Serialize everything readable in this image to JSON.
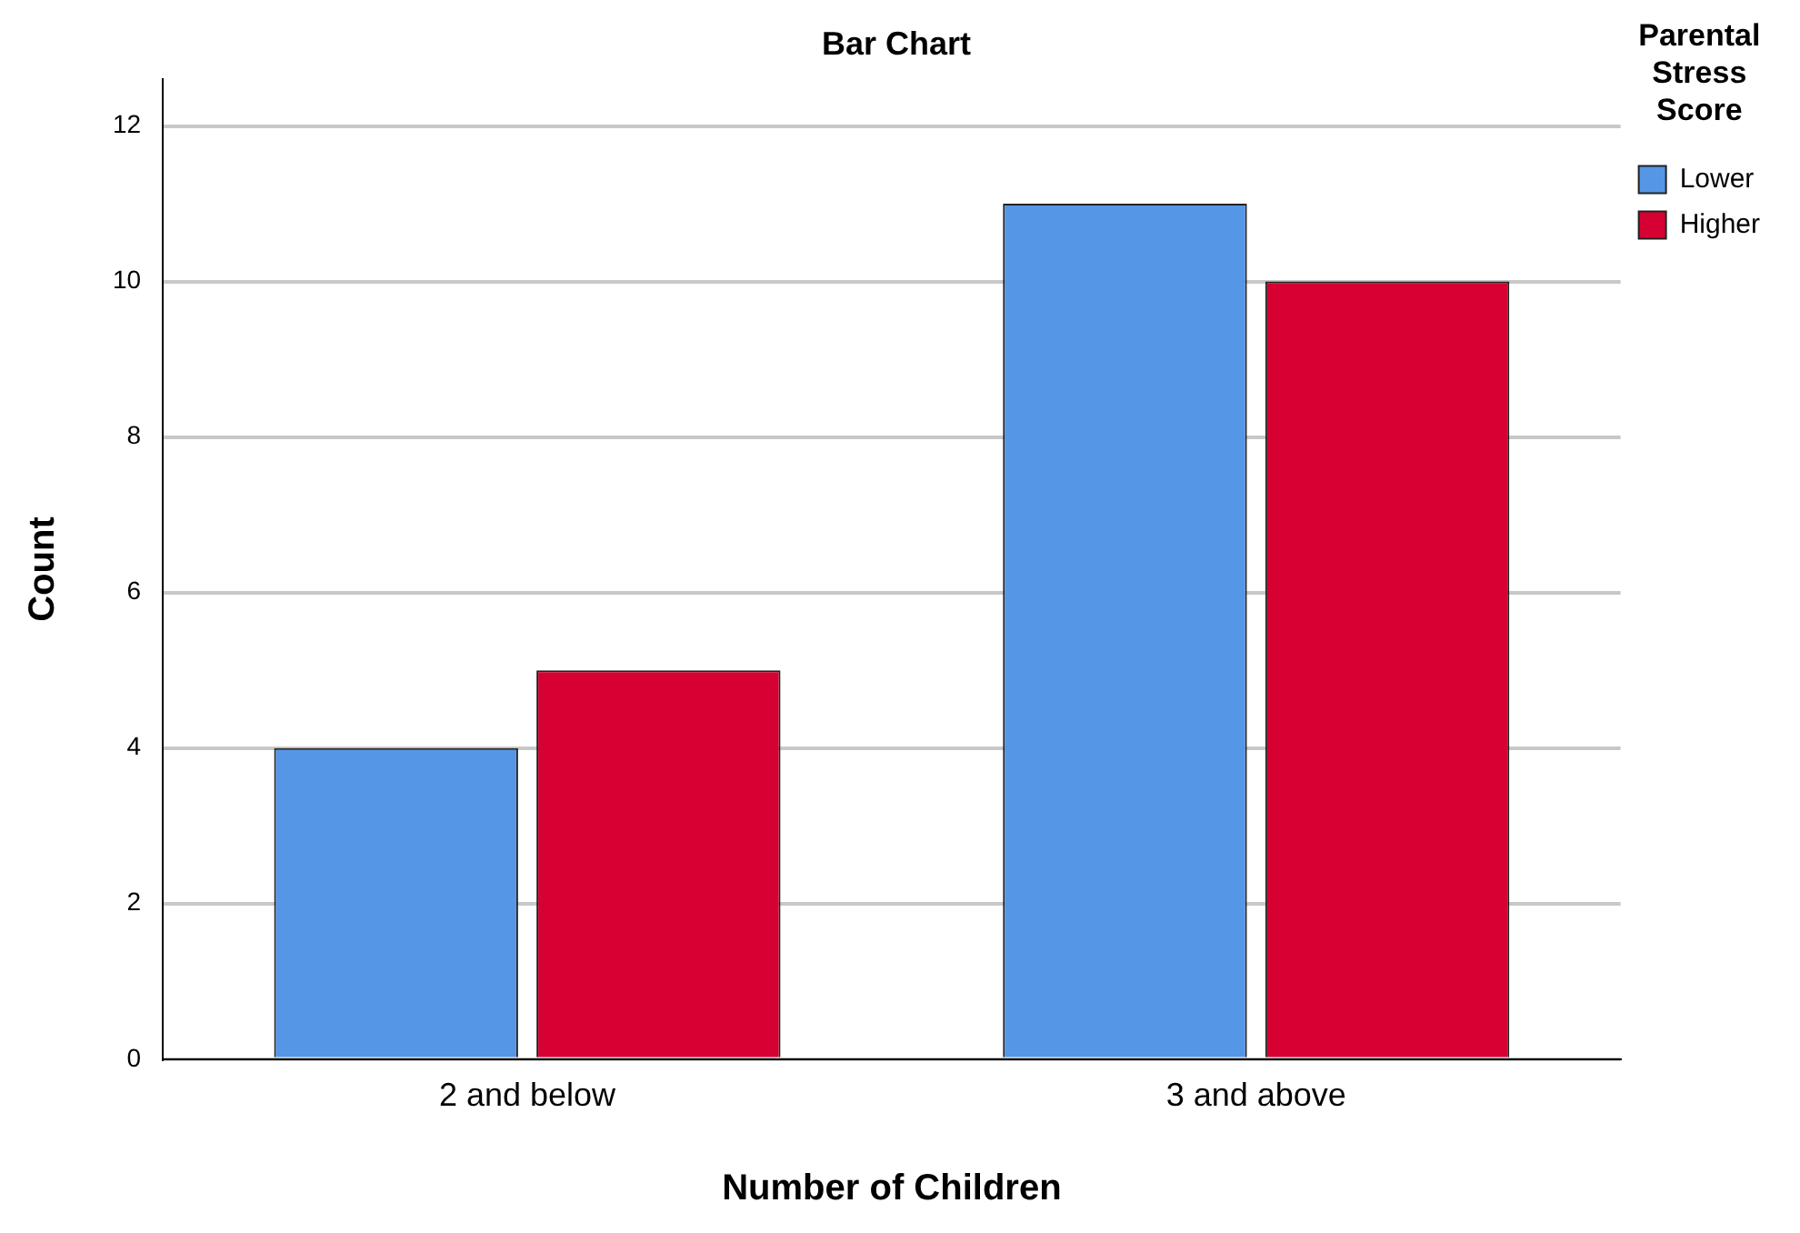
{
  "chart_data": {
    "type": "bar",
    "title": "Bar Chart",
    "xlabel": "Number of Children",
    "ylabel": "Count",
    "legend_title": "Parental Stress Score",
    "categories": [
      "2 and below",
      "3 and above"
    ],
    "series": [
      {
        "name": "Lower",
        "color": "#5596e6",
        "values": [
          4,
          11
        ]
      },
      {
        "name": "Higher",
        "color": "#d60032",
        "values": [
          5,
          10
        ]
      }
    ],
    "ylim": [
      0,
      12.6
    ],
    "yticks": [
      0,
      2,
      4,
      6,
      8,
      10,
      12
    ],
    "grid": "y",
    "legend": "top right"
  }
}
